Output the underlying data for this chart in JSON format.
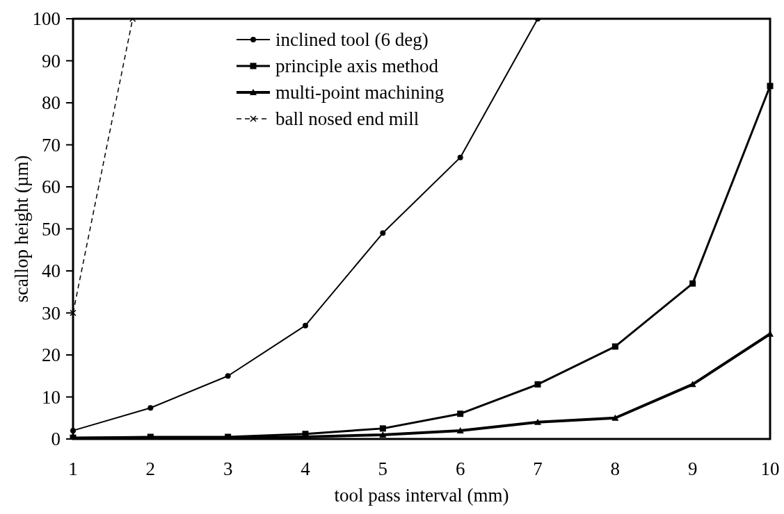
{
  "chart_data": {
    "type": "line",
    "xlabel": "tool pass interval (mm)",
    "ylabel": "scallop height (µm)",
    "x": [
      1,
      2,
      3,
      4,
      5,
      6,
      7,
      8,
      9,
      10
    ],
    "xlim": [
      1,
      10
    ],
    "xticks": [
      1,
      2,
      3,
      4,
      5,
      6,
      7,
      8,
      9,
      10
    ],
    "ylim": [
      0,
      100
    ],
    "yticks": [
      0,
      10,
      20,
      30,
      40,
      50,
      60,
      70,
      80,
      90,
      100
    ],
    "grid": false,
    "legend": "top",
    "series": [
      {
        "name": "inclined tool (6 deg)",
        "color": "#000000",
        "marker": "circle",
        "line_style": "solid",
        "values": [
          2,
          7.4,
          15,
          27,
          49,
          67,
          100,
          null,
          null,
          null
        ]
      },
      {
        "name": "principle axis method",
        "color": "#000000",
        "marker": "square",
        "line_style": "solid",
        "values": [
          0.3,
          0.5,
          0.5,
          1.2,
          2.5,
          6,
          13,
          22,
          37,
          84
        ]
      },
      {
        "name": "multi-point machining",
        "color": "#000000",
        "marker": "triangle",
        "line_style": "solid",
        "values": [
          0.2,
          0.3,
          0.3,
          0.5,
          1,
          2,
          4,
          5,
          13,
          25
        ]
      },
      {
        "name": "ball nosed end mill",
        "color": "#000000",
        "marker": "cross",
        "line_style": "dashed",
        "x": [
          1,
          1.77
        ],
        "values": [
          30,
          100
        ]
      }
    ]
  }
}
